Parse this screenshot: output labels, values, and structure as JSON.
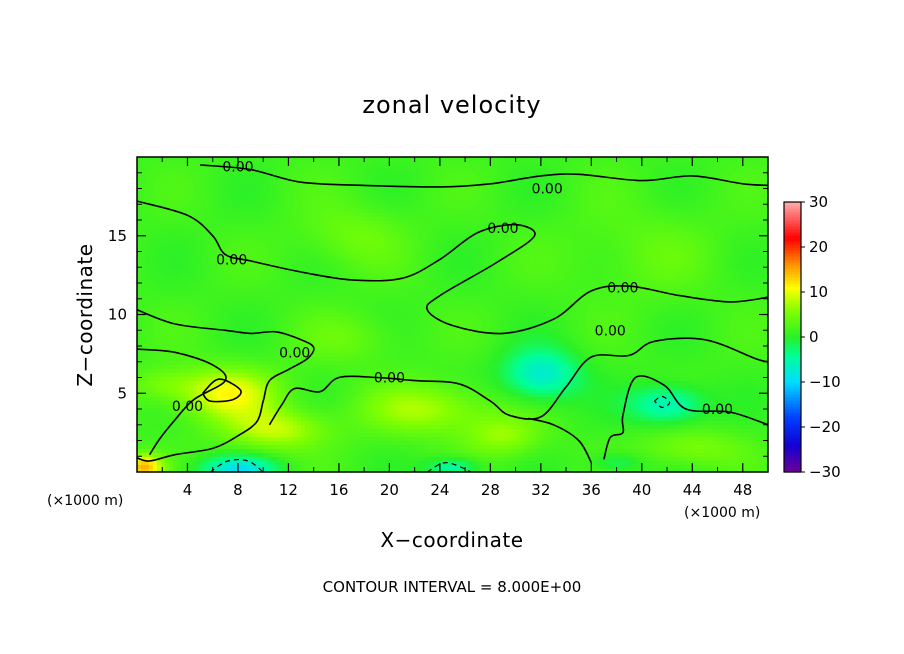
{
  "chart_data": {
    "type": "heatmap",
    "title": "zonal velocity",
    "xlabel": "X−coordinate",
    "ylabel": "Z−coordinate",
    "x_unit_left": "(×1000 m)",
    "x_unit_right": "(×1000 m)",
    "xlim": [
      0,
      50
    ],
    "ylim": [
      0,
      20
    ],
    "x_ticks": [
      4,
      8,
      12,
      16,
      20,
      24,
      28,
      32,
      36,
      40,
      44,
      48
    ],
    "y_ticks": [
      5,
      10,
      15
    ],
    "colorbar": {
      "min": -30,
      "max": 30,
      "ticks": [
        30,
        20,
        10,
        0,
        -10,
        -20,
        -30
      ],
      "tick_labels": [
        "30",
        "20",
        "10",
        "0",
        "−10",
        "−20",
        "−30"
      ]
    },
    "contour_interval_text": "CONTOUR INTERVAL = 8.000E+00",
    "contour_label": "0.00",
    "contour_label_positions": [
      [
        8,
        19.4
      ],
      [
        32.5,
        18
      ],
      [
        29,
        15.5
      ],
      [
        7.5,
        13.5
      ],
      [
        38.5,
        11.7
      ],
      [
        37.5,
        9
      ],
      [
        12.5,
        7.6
      ],
      [
        20,
        6
      ],
      [
        4,
        4.2
      ],
      [
        46,
        4
      ]
    ],
    "contours": [
      [
        [
          5,
          19.5
        ],
        [
          9,
          19.2
        ],
        [
          13,
          18.4
        ],
        [
          18,
          18.2
        ],
        [
          24,
          18.1
        ],
        [
          28,
          18.3
        ],
        [
          32,
          18.8
        ],
        [
          35,
          18.9
        ],
        [
          40,
          18.5
        ],
        [
          44,
          18.8
        ],
        [
          48,
          18.3
        ],
        [
          50,
          18.2
        ]
      ],
      [
        [
          0,
          17.2
        ],
        [
          4,
          16.3
        ],
        [
          6,
          15.0
        ],
        [
          7,
          13.8
        ],
        [
          9,
          13.4
        ],
        [
          13,
          12.7
        ],
        [
          17,
          12.2
        ],
        [
          21,
          12.3
        ],
        [
          24,
          13.5
        ],
        [
          27,
          15.2
        ],
        [
          30,
          15.7
        ],
        [
          31.5,
          15.0
        ],
        [
          28.5,
          13.3
        ],
        [
          24,
          11.2
        ],
        [
          23,
          10.3
        ],
        [
          25,
          9.3
        ],
        [
          29,
          8.8
        ],
        [
          33,
          9.7
        ],
        [
          36,
          11.5
        ],
        [
          39,
          11.8
        ],
        [
          43,
          11.2
        ],
        [
          47,
          10.8
        ],
        [
          50,
          11.1
        ]
      ],
      [
        [
          0,
          10.3
        ],
        [
          3,
          9.4
        ],
        [
          7,
          9.0
        ],
        [
          9,
          8.8
        ],
        [
          11,
          8.9
        ],
        [
          13,
          8.4
        ],
        [
          14,
          7.9
        ],
        [
          13.5,
          7.2
        ],
        [
          12,
          6.5
        ],
        [
          10.5,
          5.8
        ],
        [
          10,
          4.5
        ],
        [
          9.5,
          3.2
        ],
        [
          8,
          2.3
        ],
        [
          6,
          1.5
        ],
        [
          3,
          1.1
        ],
        [
          1,
          0.7
        ],
        [
          0,
          0.9
        ]
      ],
      [
        [
          0,
          7.8
        ],
        [
          3,
          7.6
        ],
        [
          6,
          6.8
        ],
        [
          7,
          5.8
        ],
        [
          4.5,
          4.6
        ],
        [
          3,
          3.3
        ],
        [
          1.8,
          2.1
        ],
        [
          1,
          1.1
        ]
      ],
      [
        [
          5.2,
          5.0
        ],
        [
          6.5,
          5.9
        ],
        [
          8.2,
          5.2
        ],
        [
          7.6,
          4.6
        ],
        [
          5.8,
          4.5
        ],
        [
          5.2,
          5.0
        ]
      ],
      [
        [
          10.5,
          3.0
        ],
        [
          11.5,
          4.3
        ],
        [
          12.5,
          5.3
        ],
        [
          14.5,
          5.1
        ],
        [
          16,
          6.0
        ],
        [
          19,
          6.0
        ],
        [
          22,
          5.8
        ],
        [
          25.5,
          5.6
        ],
        [
          28,
          4.5
        ],
        [
          29.5,
          3.6
        ],
        [
          32,
          3.5
        ],
        [
          34,
          5.4
        ],
        [
          36,
          7.3
        ],
        [
          39,
          7.4
        ],
        [
          41,
          8.3
        ],
        [
          45,
          8.4
        ],
        [
          49,
          7.2
        ],
        [
          50,
          7.0
        ]
      ],
      [
        [
          31,
          3.4
        ],
        [
          33,
          3.0
        ],
        [
          35,
          2.0
        ],
        [
          36,
          0.6
        ]
      ],
      [
        [
          37,
          0.8
        ],
        [
          37.5,
          2.2
        ],
        [
          38.5,
          2.5
        ],
        [
          38.5,
          3.6
        ],
        [
          39.5,
          6.0
        ],
        [
          41.8,
          5.5
        ],
        [
          43.5,
          4.0
        ],
        [
          47,
          3.8
        ],
        [
          50,
          3.0
        ]
      ]
    ],
    "dashed_contours": [
      [
        [
          5.8,
          0.0
        ],
        [
          7.2,
          0.7
        ],
        [
          8.8,
          0.7
        ],
        [
          10,
          0.0
        ]
      ],
      [
        [
          23,
          0.0
        ],
        [
          24.5,
          0.6
        ],
        [
          26.5,
          0.0
        ]
      ],
      [
        [
          41,
          4.5
        ],
        [
          41.6,
          4.8
        ],
        [
          42.2,
          4.4
        ],
        [
          41.6,
          4.1
        ],
        [
          41,
          4.5
        ]
      ]
    ],
    "field_blobs": [
      {
        "x": 7,
        "y": 5,
        "sx": 4.0,
        "sy": 1.6,
        "v": 9
      },
      {
        "x": 11,
        "y": 2.7,
        "sx": 4.0,
        "sy": 1.3,
        "v": 7
      },
      {
        "x": 23,
        "y": 4.0,
        "sx": 5.0,
        "sy": 1.6,
        "v": 6
      },
      {
        "x": 2,
        "y": 5.6,
        "sx": 2.5,
        "sy": 1.0,
        "v": 3
      },
      {
        "x": 0.5,
        "y": 0.3,
        "sx": 1.5,
        "sy": 0.8,
        "v": 13
      },
      {
        "x": 32,
        "y": 6.2,
        "sx": 3.0,
        "sy": 1.6,
        "v": -9
      },
      {
        "x": 42,
        "y": 4.3,
        "sx": 3.0,
        "sy": 1.2,
        "v": -8
      },
      {
        "x": 8,
        "y": 0.2,
        "sx": 3.0,
        "sy": 0.8,
        "v": -10
      },
      {
        "x": 25,
        "y": 0.3,
        "sx": 2.0,
        "sy": 0.6,
        "v": -7
      },
      {
        "x": 38,
        "y": 0.6,
        "sx": 2.0,
        "sy": 0.6,
        "v": -4
      },
      {
        "x": 17,
        "y": 15,
        "sx": 4.0,
        "sy": 2.0,
        "v": 3
      },
      {
        "x": 40,
        "y": 14,
        "sx": 6.0,
        "sy": 3.0,
        "v": 2
      },
      {
        "x": 44,
        "y": 1.5,
        "sx": 4.0,
        "sy": 1.2,
        "v": 4
      },
      {
        "x": 29,
        "y": 2.3,
        "sx": 3.0,
        "sy": 1.3,
        "v": 5
      },
      {
        "x": 17,
        "y": 8.5,
        "sx": 4.0,
        "sy": 1.6,
        "v": 2.5
      }
    ]
  }
}
